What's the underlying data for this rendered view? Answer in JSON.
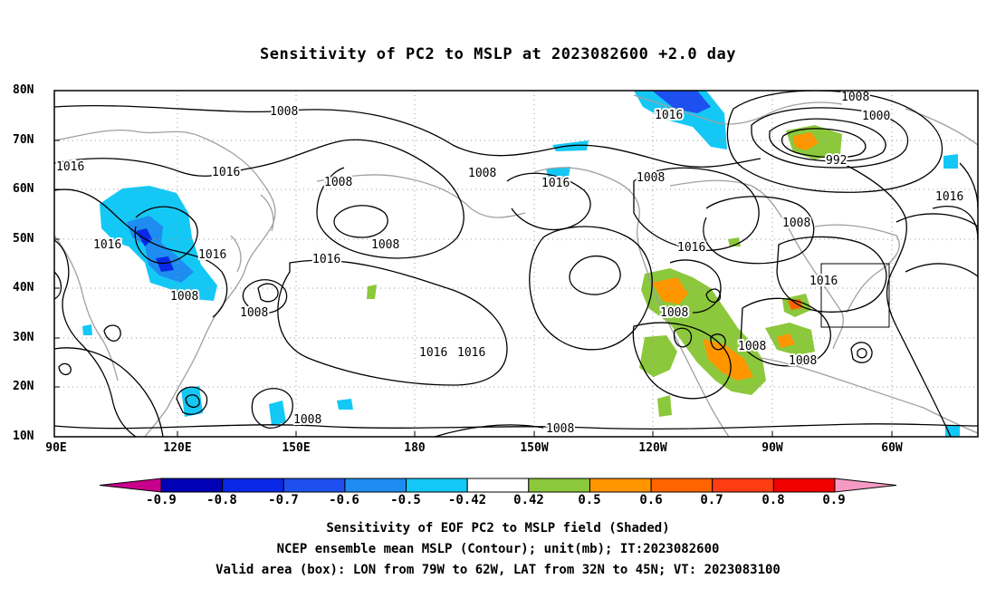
{
  "title": "Sensitivity of PC2 to MSLP at 2023082600 +2.0 day",
  "lat_labels": [
    "80N",
    "70N",
    "60N",
    "50N",
    "40N",
    "30N",
    "20N",
    "10N"
  ],
  "lon_labels": [
    "90E",
    "120E",
    "150E",
    "180",
    "150W",
    "120W",
    "90W",
    "60W"
  ],
  "contour_labels": [
    "1008",
    "1016",
    "1016",
    "1008",
    "1008",
    "1016",
    "1016",
    "1016",
    "1008",
    "1008",
    "1016",
    "1016",
    "1008",
    "1016",
    "1008",
    "1000",
    "992",
    "1016",
    "1008",
    "1016",
    "1016",
    "1008",
    "1008",
    "1008",
    "1008",
    "1016",
    "1008",
    "1008"
  ],
  "colorbar": {
    "labels": [
      "-0.9",
      "-0.8",
      "-0.7",
      "-0.6",
      "-0.5",
      "-0.42",
      "0.42",
      "0.5",
      "0.6",
      "0.7",
      "0.8",
      "0.9"
    ],
    "colors": [
      "#c8008c",
      "#0000b4",
      "#0a28e6",
      "#1e50f0",
      "#1e8cf0",
      "#14c8f5",
      "#ffffff",
      "#8cc83c",
      "#ff9600",
      "#ff6400",
      "#ff3c14",
      "#f00000",
      "#f59bc3"
    ]
  },
  "captions": [
    "Sensitivity of EOF PC2 to MSLP field (Shaded)",
    "NCEP ensemble mean MSLP (Contour); unit(mb); IT:2023082600",
    "Valid area (box): LON from 79W to 62W, LAT from 32N to 45N; VT: 2023083100"
  ]
}
